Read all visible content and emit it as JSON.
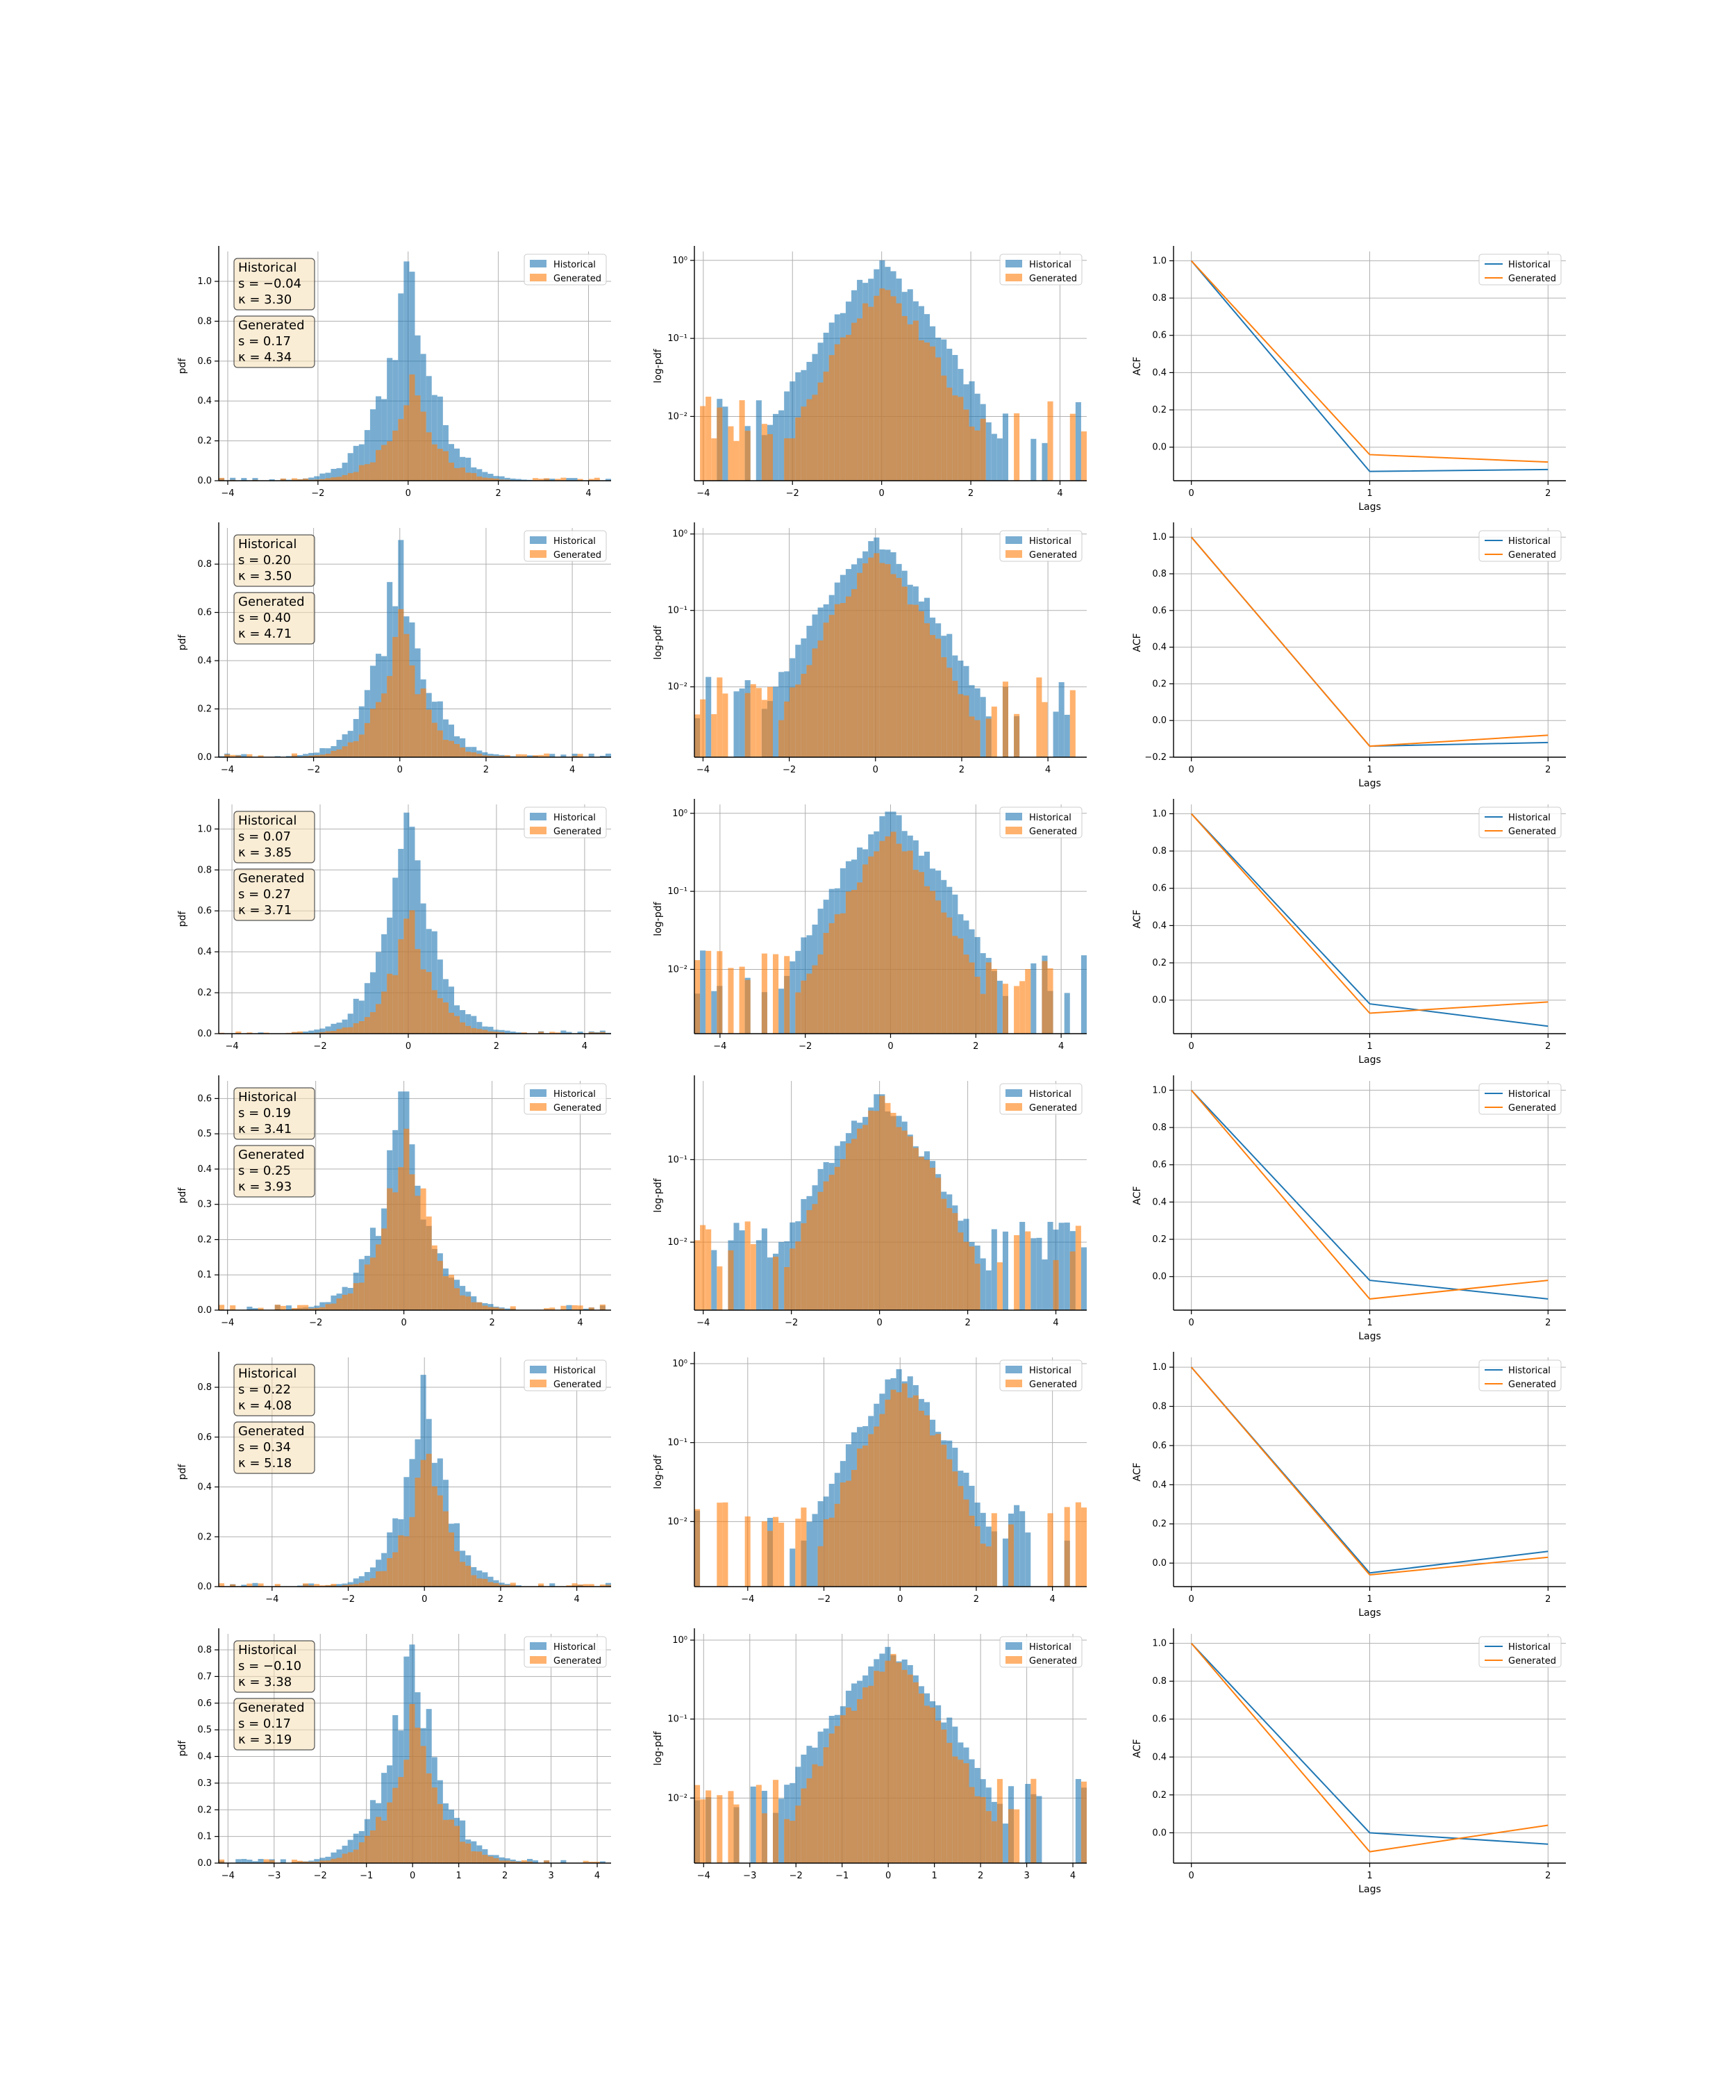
{
  "legend_labels": {
    "historical": "Historical",
    "generated": "Generated"
  },
  "colors": {
    "historical": "#1f77b4",
    "generated": "#ff7f0e",
    "stats_box_fill": "#f5deb3",
    "grid": "#b0b0b0"
  },
  "chart_data": [
    {
      "type": "bar",
      "panel": "pdf",
      "row": 0,
      "ylabel": "pdf",
      "ylim": [
        0,
        1.15
      ],
      "yticks": [
        "0.0",
        "0.2",
        "0.4",
        "0.6",
        "0.8",
        "1.0"
      ],
      "xlim": [
        -4.2,
        4.5
      ],
      "xticks": [
        "−4",
        "−2",
        "0",
        "2",
        "4"
      ],
      "grid": true,
      "legend": "top-right",
      "stats": {
        "historical": {
          "title": "Historical",
          "s": "s = −0.04",
          "k": "κ = 3.30"
        },
        "generated": {
          "title": "Generated",
          "s": "s = 0.17",
          "k": "κ = 4.34"
        }
      },
      "series": [
        {
          "name": "Historical",
          "center": 0.0,
          "sigma": 0.68,
          "peak": 1.1
        },
        {
          "name": "Generated",
          "center": 0.05,
          "sigma": 0.62,
          "peak": 0.51
        }
      ]
    },
    {
      "type": "bar",
      "panel": "logpdf",
      "row": 0,
      "ylabel": "log-pdf",
      "scale": "log",
      "ylim": [
        0.0015,
        1.3
      ],
      "yticks": [
        "10⁻²",
        "10⁻¹",
        "10⁰"
      ],
      "xlim": [
        -4.2,
        4.6
      ],
      "xticks": [
        "−4",
        "−2",
        "0",
        "2",
        "4"
      ],
      "grid": true,
      "legend": "top-right",
      "series": [
        {
          "name": "Historical",
          "center": 0.0,
          "sigma": 0.7,
          "peak": 1.0
        },
        {
          "name": "Generated",
          "center": 0.05,
          "sigma": 0.63,
          "peak": 0.5
        }
      ]
    },
    {
      "type": "line",
      "panel": "acf",
      "row": 0,
      "ylabel": "ACF",
      "xlabel": "Lags",
      "x": [
        0,
        1,
        2
      ],
      "xticks": [
        "0",
        "1",
        "2"
      ],
      "ylim": [
        -0.18,
        1.05
      ],
      "yticks": [
        "0.0",
        "0.2",
        "0.4",
        "0.6",
        "0.8",
        "1.0"
      ],
      "grid": true,
      "legend": "top-right",
      "series": [
        {
          "name": "Historical",
          "values": [
            1.0,
            -0.13,
            -0.12
          ]
        },
        {
          "name": "Generated",
          "values": [
            1.0,
            -0.04,
            -0.08
          ]
        }
      ]
    },
    {
      "type": "bar",
      "panel": "pdf",
      "row": 1,
      "ylabel": "pdf",
      "ylim": [
        0,
        0.95
      ],
      "yticks": [
        "0.0",
        "0.2",
        "0.4",
        "0.6",
        "0.8"
      ],
      "xlim": [
        -4.2,
        4.9
      ],
      "xticks": [
        "−4",
        "−2",
        "0",
        "2",
        "4"
      ],
      "grid": true,
      "legend": "top-right",
      "stats": {
        "historical": {
          "title": "Historical",
          "s": "s = 0.20",
          "k": "κ = 3.50"
        },
        "generated": {
          "title": "Generated",
          "s": "s = 0.40",
          "k": "κ = 4.71"
        }
      },
      "series": [
        {
          "name": "Historical",
          "center": 0.0,
          "sigma": 0.68,
          "peak": 0.9
        },
        {
          "name": "Generated",
          "center": 0.05,
          "sigma": 0.62,
          "peak": 0.55
        }
      ]
    },
    {
      "type": "bar",
      "panel": "logpdf",
      "row": 1,
      "ylabel": "log-pdf",
      "scale": "log",
      "ylim": [
        0.0012,
        1.2
      ],
      "yticks": [
        "10⁻²",
        "10⁻¹",
        "10⁰"
      ],
      "xlim": [
        -4.2,
        4.9
      ],
      "xticks": [
        "−4",
        "−2",
        "0",
        "2",
        "4"
      ],
      "grid": true,
      "legend": "top-right",
      "series": [
        {
          "name": "Historical",
          "center": 0.0,
          "sigma": 0.7,
          "peak": 0.9
        },
        {
          "name": "Generated",
          "center": 0.05,
          "sigma": 0.63,
          "peak": 0.55
        }
      ]
    },
    {
      "type": "line",
      "panel": "acf",
      "row": 1,
      "ylabel": "ACF",
      "xlabel": "Lags",
      "x": [
        0,
        1,
        2
      ],
      "xticks": [
        "0",
        "1",
        "2"
      ],
      "ylim": [
        -0.2,
        1.05
      ],
      "yticks": [
        "−0.2",
        "0.0",
        "0.2",
        "0.4",
        "0.6",
        "0.8",
        "1.0"
      ],
      "grid": true,
      "legend": "top-right",
      "series": [
        {
          "name": "Historical",
          "values": [
            1.0,
            -0.14,
            -0.12
          ]
        },
        {
          "name": "Generated",
          "values": [
            1.0,
            -0.14,
            -0.08
          ]
        }
      ]
    },
    {
      "type": "bar",
      "panel": "pdf",
      "row": 2,
      "ylabel": "pdf",
      "ylim": [
        0,
        1.12
      ],
      "yticks": [
        "0.0",
        "0.2",
        "0.4",
        "0.6",
        "0.8",
        "1.0"
      ],
      "xlim": [
        -4.3,
        4.6
      ],
      "xticks": [
        "−4",
        "−2",
        "0",
        "2",
        "4"
      ],
      "grid": true,
      "legend": "top-right",
      "stats": {
        "historical": {
          "title": "Historical",
          "s": "s = 0.07",
          "k": "κ = 3.85"
        },
        "generated": {
          "title": "Generated",
          "s": "s = 0.27",
          "k": "κ = 3.71"
        }
      },
      "series": [
        {
          "name": "Historical",
          "center": 0.0,
          "sigma": 0.68,
          "peak": 1.08
        },
        {
          "name": "Generated",
          "center": 0.05,
          "sigma": 0.62,
          "peak": 0.55
        }
      ]
    },
    {
      "type": "bar",
      "panel": "logpdf",
      "row": 2,
      "ylabel": "log-pdf",
      "scale": "log",
      "ylim": [
        0.0015,
        1.3
      ],
      "yticks": [
        "10⁻²",
        "10⁻¹",
        "10⁰"
      ],
      "xlim": [
        -4.6,
        4.6
      ],
      "xticks": [
        "−4",
        "−2",
        "0",
        "2",
        "4"
      ],
      "grid": true,
      "legend": "top-right",
      "series": [
        {
          "name": "Historical",
          "center": 0.0,
          "sigma": 0.7,
          "peak": 1.05
        },
        {
          "name": "Generated",
          "center": 0.05,
          "sigma": 0.63,
          "peak": 0.55
        }
      ]
    },
    {
      "type": "line",
      "panel": "acf",
      "row": 2,
      "ylabel": "ACF",
      "xlabel": "Lags",
      "x": [
        0,
        1,
        2
      ],
      "xticks": [
        "0",
        "1",
        "2"
      ],
      "ylim": [
        -0.18,
        1.05
      ],
      "yticks": [
        "0.0",
        "0.2",
        "0.4",
        "0.6",
        "0.8",
        "1.0"
      ],
      "grid": true,
      "legend": "top-right",
      "series": [
        {
          "name": "Historical",
          "values": [
            1.0,
            -0.02,
            -0.14
          ]
        },
        {
          "name": "Generated",
          "values": [
            1.0,
            -0.07,
            -0.01
          ]
        }
      ]
    },
    {
      "type": "bar",
      "panel": "pdf",
      "row": 3,
      "ylabel": "pdf",
      "ylim": [
        0,
        0.65
      ],
      "yticks": [
        "0.0",
        "0.1",
        "0.2",
        "0.3",
        "0.4",
        "0.5",
        "0.6"
      ],
      "xlim": [
        -4.2,
        4.7
      ],
      "xticks": [
        "−4",
        "−2",
        "0",
        "2",
        "4"
      ],
      "grid": true,
      "legend": "top-right",
      "stats": {
        "historical": {
          "title": "Historical",
          "s": "s = 0.19",
          "k": "κ = 3.41"
        },
        "generated": {
          "title": "Generated",
          "s": "s = 0.25",
          "k": "κ = 3.93"
        }
      },
      "series": [
        {
          "name": "Historical",
          "center": 0.0,
          "sigma": 0.68,
          "peak": 0.62
        },
        {
          "name": "Generated",
          "center": 0.05,
          "sigma": 0.62,
          "peak": 0.58
        }
      ]
    },
    {
      "type": "bar",
      "panel": "logpdf",
      "row": 3,
      "ylabel": "log-pdf",
      "scale": "log",
      "ylim": [
        0.0015,
        0.9
      ],
      "yticks": [
        "10⁻²",
        "10⁻¹"
      ],
      "xlim": [
        -4.2,
        4.7
      ],
      "xticks": [
        "−4",
        "−2",
        "0",
        "2",
        "4"
      ],
      "grid": true,
      "legend": "top-right",
      "series": [
        {
          "name": "Historical",
          "center": 0.0,
          "sigma": 0.7,
          "peak": 0.62
        },
        {
          "name": "Generated",
          "center": 0.05,
          "sigma": 0.63,
          "peak": 0.58
        }
      ]
    },
    {
      "type": "line",
      "panel": "acf",
      "row": 3,
      "ylabel": "ACF",
      "xlabel": "Lags",
      "x": [
        0,
        1,
        2
      ],
      "xticks": [
        "0",
        "1",
        "2"
      ],
      "ylim": [
        -0.18,
        1.05
      ],
      "yticks": [
        "0.0",
        "0.2",
        "0.4",
        "0.6",
        "0.8",
        "1.0"
      ],
      "grid": true,
      "legend": "top-right",
      "series": [
        {
          "name": "Historical",
          "values": [
            1.0,
            -0.02,
            -0.12
          ]
        },
        {
          "name": "Generated",
          "values": [
            1.0,
            -0.12,
            -0.02
          ]
        }
      ]
    },
    {
      "type": "bar",
      "panel": "pdf",
      "row": 4,
      "ylabel": "pdf",
      "ylim": [
        0,
        0.92
      ],
      "yticks": [
        "0.0",
        "0.2",
        "0.4",
        "0.6",
        "0.8"
      ],
      "xlim": [
        -5.4,
        4.9
      ],
      "xticks": [
        "−4",
        "−2",
        "0",
        "2",
        "4"
      ],
      "grid": true,
      "legend": "top-right",
      "stats": {
        "historical": {
          "title": "Historical",
          "s": "s = 0.22",
          "k": "κ = 4.08"
        },
        "generated": {
          "title": "Generated",
          "s": "s = 0.34",
          "k": "κ = 5.18"
        }
      },
      "series": [
        {
          "name": "Historical",
          "center": 0.0,
          "sigma": 0.68,
          "peak": 0.85
        },
        {
          "name": "Generated",
          "center": 0.05,
          "sigma": 0.62,
          "peak": 0.6
        }
      ]
    },
    {
      "type": "bar",
      "panel": "logpdf",
      "row": 4,
      "ylabel": "log-pdf",
      "scale": "log",
      "ylim": [
        0.0015,
        1.2
      ],
      "yticks": [
        "10⁻²",
        "10⁻¹",
        "10⁰"
      ],
      "xlim": [
        -5.4,
        4.9
      ],
      "xticks": [
        "−4",
        "−2",
        "0",
        "2",
        "4"
      ],
      "grid": true,
      "legend": "top-right",
      "series": [
        {
          "name": "Historical",
          "center": 0.0,
          "sigma": 0.7,
          "peak": 0.85
        },
        {
          "name": "Generated",
          "center": 0.05,
          "sigma": 0.63,
          "peak": 0.6
        }
      ]
    },
    {
      "type": "line",
      "panel": "acf",
      "row": 4,
      "ylabel": "ACF",
      "xlabel": "Lags",
      "x": [
        0,
        1,
        2
      ],
      "xticks": [
        "0",
        "1",
        "2"
      ],
      "ylim": [
        -0.12,
        1.05
      ],
      "yticks": [
        "0.0",
        "0.2",
        "0.4",
        "0.6",
        "0.8",
        "1.0"
      ],
      "grid": true,
      "legend": "top-right",
      "series": [
        {
          "name": "Historical",
          "values": [
            1.0,
            -0.05,
            0.06
          ]
        },
        {
          "name": "Generated",
          "values": [
            1.0,
            -0.06,
            0.03
          ]
        }
      ]
    },
    {
      "type": "bar",
      "panel": "pdf",
      "row": 5,
      "ylabel": "pdf",
      "ylim": [
        0,
        0.86
      ],
      "yticks": [
        "0.0",
        "0.1",
        "0.2",
        "0.3",
        "0.4",
        "0.5",
        "0.6",
        "0.7",
        "0.8"
      ],
      "xlim": [
        -4.2,
        4.3
      ],
      "xticks": [
        "−4",
        "−3",
        "−2",
        "−1",
        "0",
        "1",
        "2",
        "3",
        "4"
      ],
      "grid": true,
      "legend": "top-right",
      "stats": {
        "historical": {
          "title": "Historical",
          "s": "s = −0.10",
          "k": "κ = 3.38"
        },
        "generated": {
          "title": "Generated",
          "s": "s = 0.17",
          "k": "κ = 3.19"
        }
      },
      "series": [
        {
          "name": "Historical",
          "center": 0.0,
          "sigma": 0.68,
          "peak": 0.82
        },
        {
          "name": "Generated",
          "center": 0.05,
          "sigma": 0.62,
          "peak": 0.62
        }
      ]
    },
    {
      "type": "bar",
      "panel": "logpdf",
      "row": 5,
      "ylabel": "log-pdf",
      "scale": "log",
      "ylim": [
        0.0015,
        1.2
      ],
      "yticks": [
        "10⁻²",
        "10⁻¹",
        "10⁰"
      ],
      "xlim": [
        -4.2,
        4.3
      ],
      "xticks": [
        "−4",
        "−3",
        "−2",
        "−1",
        "0",
        "1",
        "2",
        "3",
        "4"
      ],
      "grid": true,
      "legend": "top-right",
      "series": [
        {
          "name": "Historical",
          "center": 0.0,
          "sigma": 0.7,
          "peak": 0.82
        },
        {
          "name": "Generated",
          "center": 0.05,
          "sigma": 0.63,
          "peak": 0.62
        }
      ]
    },
    {
      "type": "line",
      "panel": "acf",
      "row": 5,
      "ylabel": "ACF",
      "xlabel": "Lags",
      "x": [
        0,
        1,
        2
      ],
      "xticks": [
        "0",
        "1",
        "2"
      ],
      "ylim": [
        -0.16,
        1.05
      ],
      "yticks": [
        "0.0",
        "0.2",
        "0.4",
        "0.6",
        "0.8",
        "1.0"
      ],
      "grid": true,
      "legend": "top-right",
      "series": [
        {
          "name": "Historical",
          "values": [
            1.0,
            0.0,
            -0.06
          ]
        },
        {
          "name": "Generated",
          "values": [
            1.0,
            -0.1,
            0.04
          ]
        }
      ]
    }
  ]
}
